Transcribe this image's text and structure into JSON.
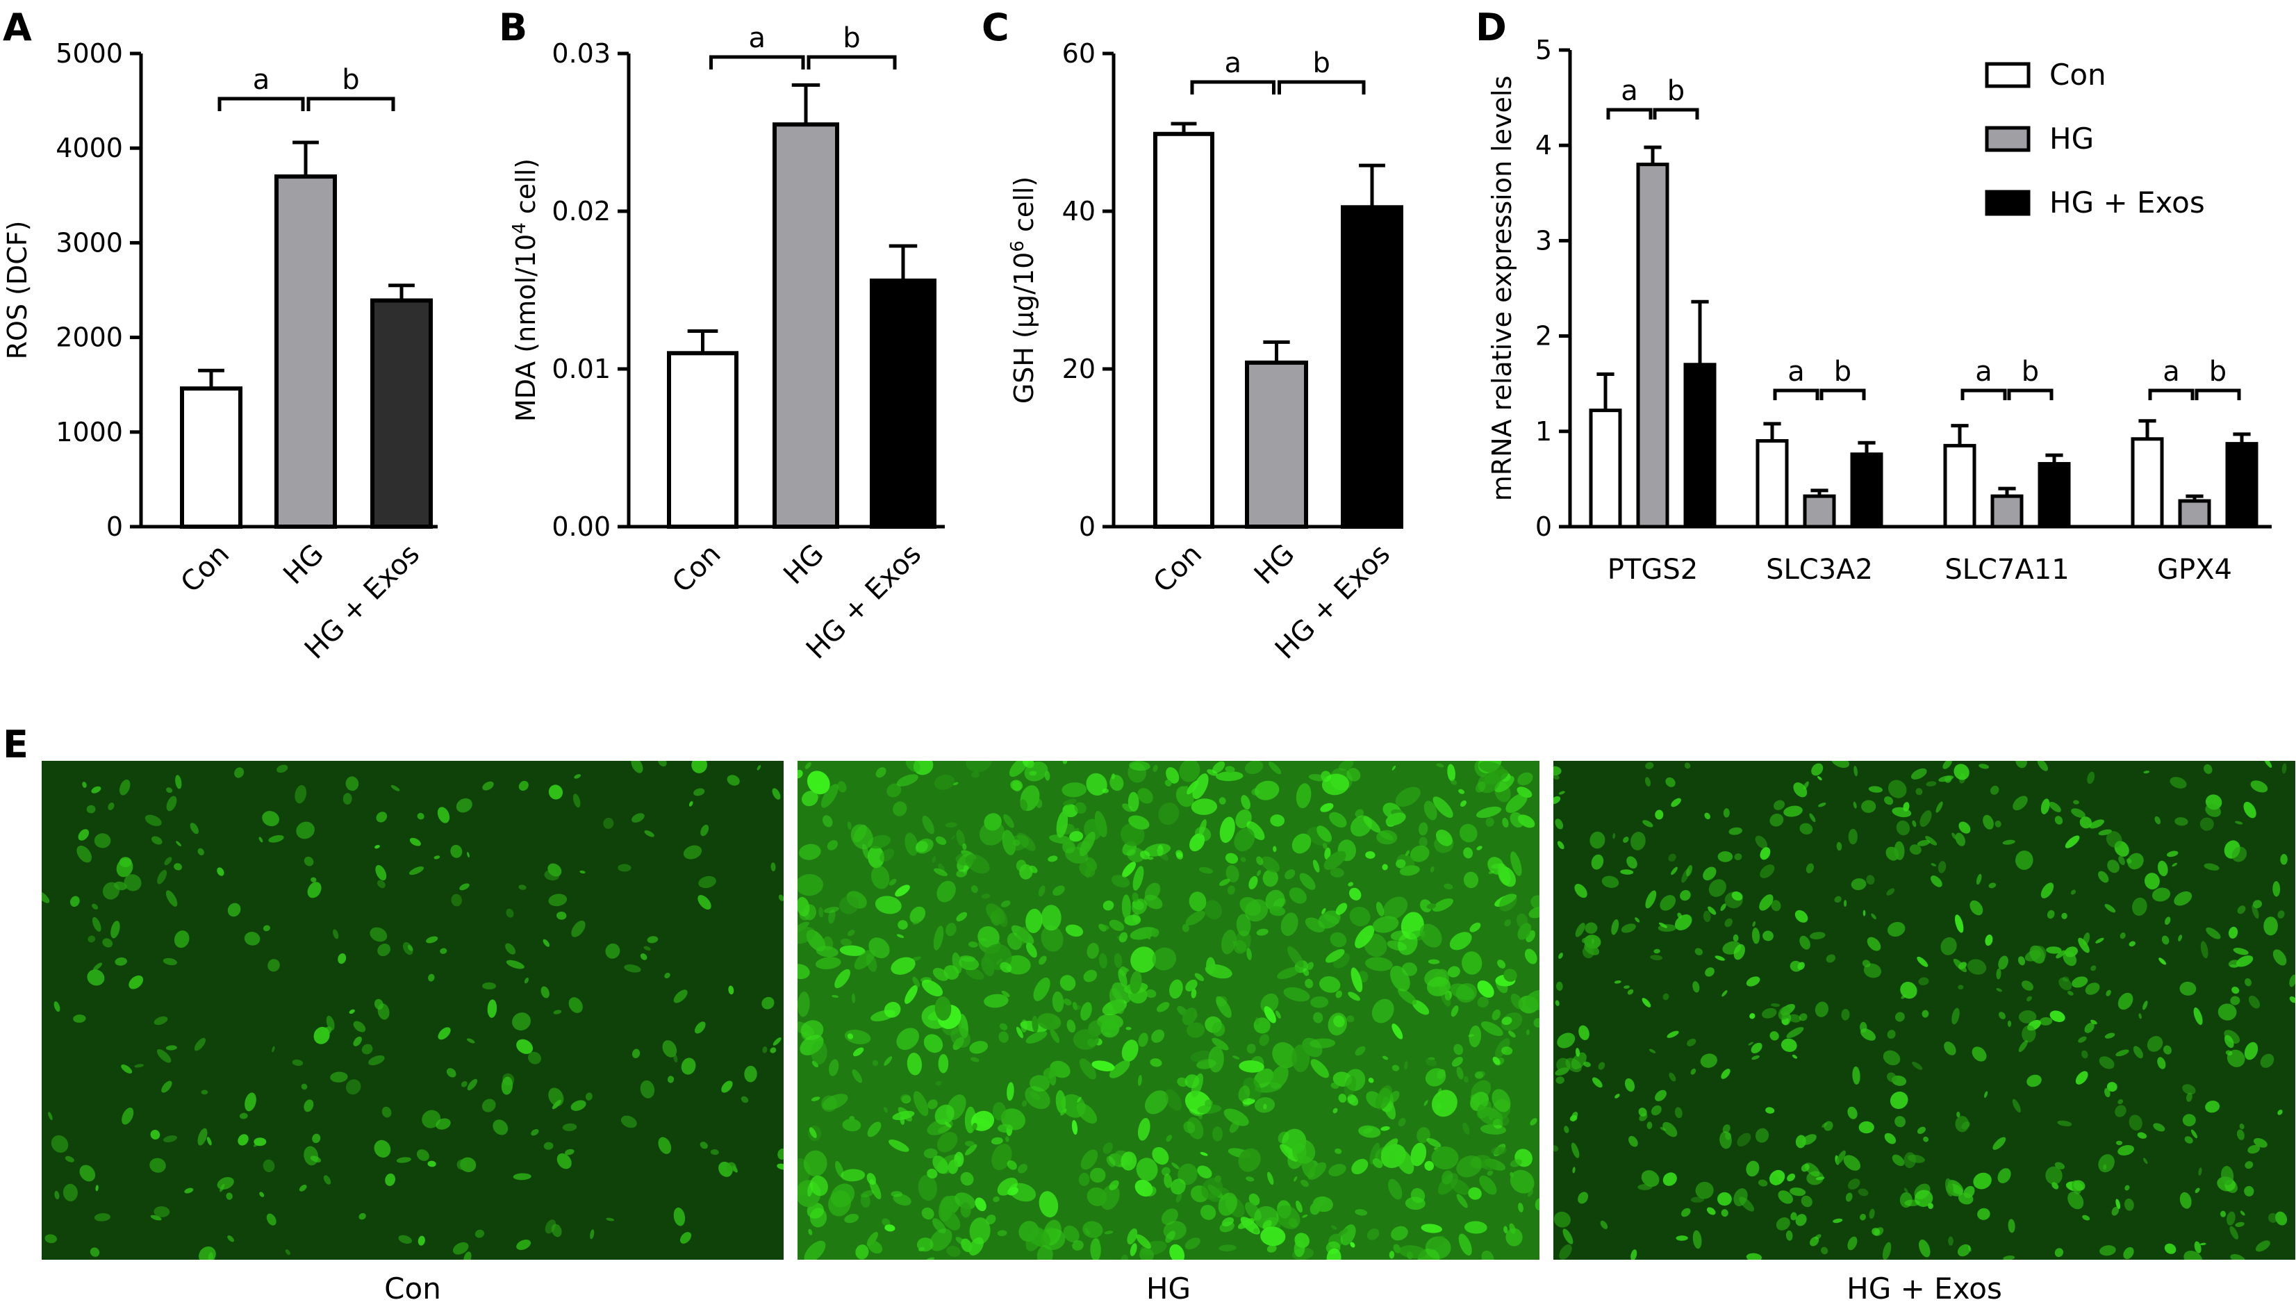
{
  "colors": {
    "con": "#ffffff",
    "hg": "#a0a0a4",
    "exos_a": "#2e2e2e",
    "exos": "#000000",
    "cell": "#36d41e",
    "bg": "#0e3a06"
  },
  "chart_data": [
    {
      "id": "A",
      "label": "A",
      "type": "bar",
      "ylabel": "ROS (DCF)",
      "ylim": [
        0,
        5000
      ],
      "yticks": [
        "0",
        "1000",
        "2000",
        "3000",
        "4000",
        "5000"
      ],
      "categories": [
        "Con",
        "HG",
        "HG + Exos"
      ],
      "values": [
        1460,
        3700,
        2390
      ],
      "errors": [
        190,
        360,
        160
      ],
      "significance": [
        "a",
        "b"
      ]
    },
    {
      "id": "B",
      "label": "B",
      "type": "bar",
      "ylabel_main": "MDA (nmol/10",
      "ylabel_sup": "4",
      "ylabel_tail": " cell)",
      "ylim": [
        0,
        0.03
      ],
      "yticks": [
        "0.00",
        "0.01",
        "0.02",
        "0.03"
      ],
      "categories": [
        "Con",
        "HG",
        "HG + Exos"
      ],
      "values": [
        0.011,
        0.0255,
        0.0156
      ],
      "errors": [
        0.0014,
        0.0025,
        0.0022
      ],
      "significance": [
        "a",
        "b"
      ]
    },
    {
      "id": "C",
      "label": "C",
      "type": "bar",
      "ylabel_main": "GSH (μg/10",
      "ylabel_sup": "6",
      "ylabel_tail": " cell)",
      "ylim": [
        0,
        60
      ],
      "yticks": [
        "0",
        "20",
        "40",
        "60"
      ],
      "categories": [
        "Con",
        "HG",
        "HG + Exos"
      ],
      "values": [
        49.8,
        20.8,
        40.5
      ],
      "errors": [
        1.3,
        2.6,
        5.3
      ],
      "significance": [
        "a",
        "b"
      ]
    },
    {
      "id": "D",
      "label": "D",
      "type": "bar",
      "ylabel": "mRNA relative expression levels",
      "ylim": [
        0,
        5
      ],
      "yticks": [
        "0",
        "1",
        "2",
        "3",
        "4",
        "5"
      ],
      "categories": [
        "PTGS2",
        "SLC3A2",
        "SLC7A11",
        "GPX4"
      ],
      "series": [
        {
          "name": "Con",
          "values": [
            1.22,
            0.9,
            0.85,
            0.92
          ],
          "errors": [
            0.38,
            0.18,
            0.21,
            0.19
          ]
        },
        {
          "name": "HG",
          "values": [
            3.8,
            0.32,
            0.32,
            0.27
          ],
          "errors": [
            0.18,
            0.06,
            0.08,
            0.05
          ]
        },
        {
          "name": "HG + Exos",
          "values": [
            1.7,
            0.76,
            0.66,
            0.87
          ],
          "errors": [
            0.66,
            0.12,
            0.09,
            0.1
          ]
        }
      ],
      "significance": [
        "a",
        "b"
      ]
    }
  ],
  "panel_e": {
    "label": "E",
    "captions": [
      "Con",
      "HG",
      "HG + Exos"
    ]
  }
}
